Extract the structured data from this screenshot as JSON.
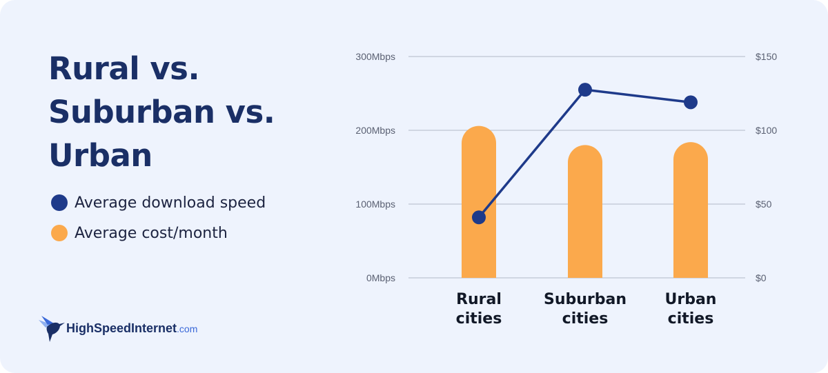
{
  "title": "Rural vs. Suburban vs. Urban",
  "legend": [
    {
      "label": "Average download speed",
      "color": "#1e3a8a"
    },
    {
      "label": "Average cost/month",
      "color": "#fba94c"
    }
  ],
  "brand": {
    "name": "HighSpeedInternet",
    "suffix": ".com"
  },
  "chart_data": {
    "type": "bar+line",
    "categories": [
      [
        "Rural",
        "cities"
      ],
      [
        "Suburban",
        "cities"
      ],
      [
        "Urban",
        "cities"
      ]
    ],
    "series": [
      {
        "name": "Average cost/month",
        "type": "bar",
        "axis": "right",
        "values": [
          103,
          90,
          92
        ],
        "color": "#fba94c"
      },
      {
        "name": "Average download speed",
        "type": "line",
        "axis": "left",
        "values": [
          82,
          255,
          238
        ],
        "color": "#1e3a8a"
      }
    ],
    "y_left": {
      "min": 0,
      "max": 300,
      "ticks": [
        0,
        100,
        200,
        300
      ],
      "tick_labels": [
        "0Mbps",
        "100Mbps",
        "200Mbps",
        "300Mbps"
      ]
    },
    "y_right": {
      "min": 0,
      "max": 150,
      "ticks": [
        0,
        50,
        100,
        150
      ],
      "tick_labels": [
        "$0",
        "$50",
        "$100",
        "$150"
      ]
    },
    "grid": true
  }
}
